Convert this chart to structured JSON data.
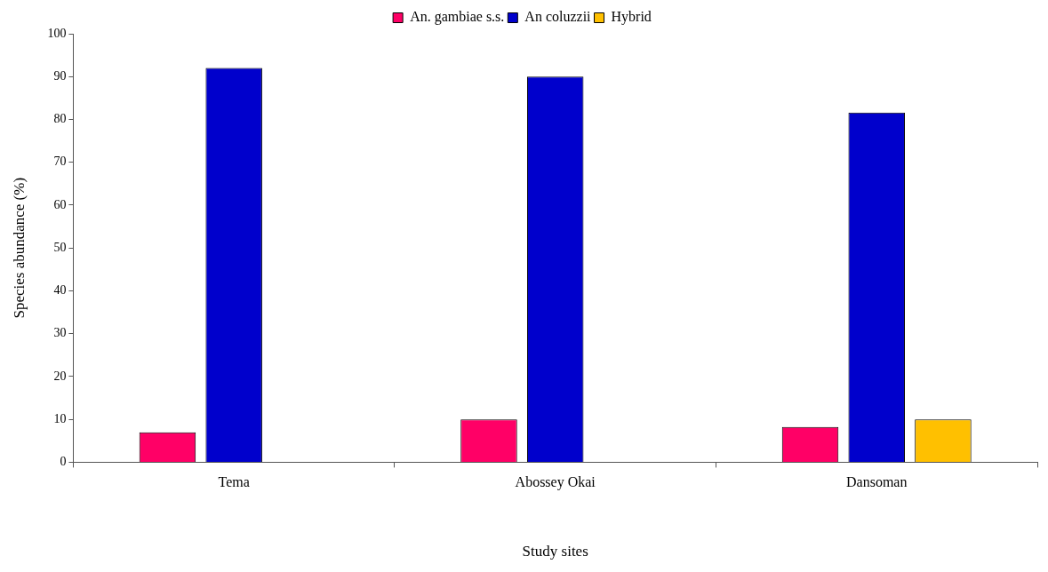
{
  "chart_data": {
    "type": "bar",
    "xlabel": "Study sites",
    "ylabel": "Species abundance (%)",
    "categories": [
      "Tema",
      "Abossey Okai",
      "Dansoman"
    ],
    "series": [
      {
        "name": "An. gambiae s.s.",
        "color": "#ff0066",
        "values": [
          7,
          10,
          8.2
        ]
      },
      {
        "name": "An coluzzii",
        "color": "#0000cc",
        "values": [
          92,
          90,
          81.6
        ]
      },
      {
        "name": "Hybrid",
        "color": "#ffc000",
        "values": [
          0,
          0,
          10
        ]
      }
    ],
    "ylim": [
      0,
      100
    ],
    "yticks": [
      0,
      10,
      20,
      30,
      40,
      50,
      60,
      70,
      80,
      90,
      100
    ],
    "grid": false,
    "legend": "top"
  }
}
